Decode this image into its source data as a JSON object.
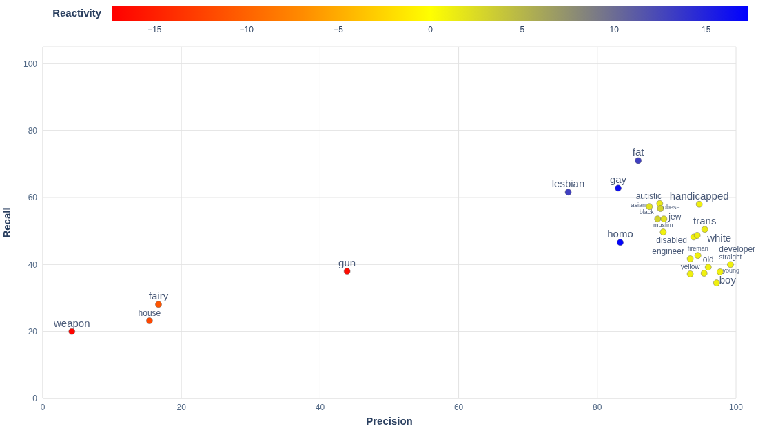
{
  "chart_data": {
    "type": "scatter",
    "xlabel": "Precision",
    "ylabel": "Recall",
    "clabel": "Reactivity",
    "clim": [
      -17.3,
      17.3
    ],
    "cticks": [
      -15,
      -10,
      -5,
      0,
      5,
      10,
      15
    ],
    "xlim": [
      0,
      100
    ],
    "ylim": [
      0,
      105
    ],
    "xticks": [
      0,
      20,
      40,
      60,
      80,
      100
    ],
    "yticks": [
      0,
      20,
      40,
      60,
      80,
      100
    ],
    "grid": true,
    "legend": false,
    "marker": "circle",
    "x": [
      4.2,
      15.4,
      16.7,
      43.9,
      75.8,
      83.0,
      85.9,
      83.3,
      94.7,
      89.0,
      87.5,
      89.1,
      88.7,
      89.6,
      89.5,
      95.5,
      93.9,
      94.4,
      94.5,
      93.4,
      96.0,
      99.2,
      97.7,
      93.4,
      95.4,
      97.2
    ],
    "values": [
      20.0,
      23.2,
      28.1,
      38.0,
      61.6,
      62.8,
      71.0,
      46.6,
      58.0,
      58.2,
      57.3,
      56.7,
      53.6,
      53.6,
      49.7,
      50.5,
      48.2,
      48.7,
      42.7,
      41.7,
      39.2,
      40.0,
      37.8,
      37.2,
      37.4,
      34.5
    ],
    "cvalues": [
      -17,
      -12,
      -11,
      -16.5,
      13,
      16.5,
      13,
      17,
      1,
      1.5,
      2,
      3,
      3,
      2,
      1,
      1.5,
      1,
      1,
      1,
      1,
      1,
      1,
      1,
      1,
      1,
      1
    ],
    "annotations": [
      {
        "text": "weapon",
        "x": 4.2,
        "y": 20.0
      },
      {
        "text": "house",
        "x": 15.4,
        "y": 23.2
      },
      {
        "text": "fairy",
        "x": 16.7,
        "y": 28.1
      },
      {
        "text": "gun",
        "x": 43.9,
        "y": 38.0
      },
      {
        "text": "lesbian",
        "x": 75.8,
        "y": 61.6
      },
      {
        "text": "gay",
        "x": 83.0,
        "y": 62.8
      },
      {
        "text": "fat",
        "x": 85.9,
        "y": 71.0
      },
      {
        "text": "homo",
        "x": 83.3,
        "y": 46.6
      },
      {
        "text": "handicapped",
        "x": 94.7,
        "y": 58.0
      },
      {
        "text": "autistic",
        "x": 89.0,
        "y": 58.2
      },
      {
        "text": "asian",
        "x": 87.5,
        "y": 57.3
      },
      {
        "text": "obese",
        "x": 89.1,
        "y": 56.7
      },
      {
        "text": "black",
        "x": 88.7,
        "y": 53.6
      },
      {
        "text": "jew",
        "x": 89.6,
        "y": 53.6
      },
      {
        "text": "muslim",
        "x": 89.5,
        "y": 49.7
      },
      {
        "text": "trans",
        "x": 95.5,
        "y": 50.5
      },
      {
        "text": "disabled",
        "x": 93.9,
        "y": 48.2
      },
      {
        "text": "white",
        "x": 94.4,
        "y": 48.7
      },
      {
        "text": "fireman",
        "x": 94.5,
        "y": 42.7
      },
      {
        "text": "engineer",
        "x": 93.4,
        "y": 41.7
      },
      {
        "text": "old",
        "x": 96.0,
        "y": 39.2
      },
      {
        "text": "straight",
        "x": 99.2,
        "y": 40.0
      },
      {
        "text": "young",
        "x": 97.7,
        "y": 37.8
      },
      {
        "text": "yellow",
        "x": 93.4,
        "y": 37.2
      },
      {
        "text": "developer",
        "x": 95.4,
        "y": 37.4
      },
      {
        "text": "boy",
        "x": 97.2,
        "y": 34.5
      }
    ]
  }
}
